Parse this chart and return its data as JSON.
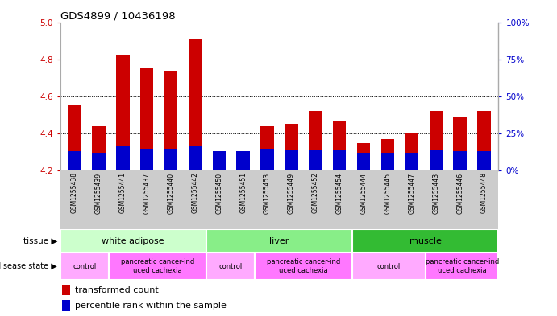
{
  "title": "GDS4899 / 10436198",
  "samples": [
    "GSM1255438",
    "GSM1255439",
    "GSM1255441",
    "GSM1255437",
    "GSM1255440",
    "GSM1255442",
    "GSM1255450",
    "GSM1255451",
    "GSM1255453",
    "GSM1255449",
    "GSM1255452",
    "GSM1255454",
    "GSM1255444",
    "GSM1255445",
    "GSM1255447",
    "GSM1255443",
    "GSM1255446",
    "GSM1255448"
  ],
  "transformed_count": [
    4.55,
    4.44,
    4.82,
    4.75,
    4.74,
    4.91,
    4.3,
    4.29,
    4.44,
    4.45,
    4.52,
    4.47,
    4.35,
    4.37,
    4.4,
    4.52,
    4.49,
    4.52
  ],
  "percentile_pct": [
    13,
    12,
    17,
    15,
    15,
    17,
    13,
    13,
    15,
    14,
    14,
    14,
    12,
    12,
    12,
    14,
    13,
    13
  ],
  "ylim_left": [
    4.2,
    5.0
  ],
  "ylim_right": [
    0,
    100
  ],
  "yticks_left": [
    4.2,
    4.4,
    4.6,
    4.8,
    5.0
  ],
  "yticks_right": [
    0,
    25,
    50,
    75,
    100
  ],
  "bar_color_red": "#cc0000",
  "bar_color_blue": "#0000cc",
  "base": 4.2,
  "dotted_lines": [
    4.4,
    4.6,
    4.8
  ],
  "tissue_groups": [
    {
      "label": "white adipose",
      "start": 0,
      "end": 6,
      "color": "#ccffcc"
    },
    {
      "label": "liver",
      "start": 6,
      "end": 12,
      "color": "#88ee88"
    },
    {
      "label": "muscle",
      "start": 12,
      "end": 18,
      "color": "#33bb33"
    }
  ],
  "disease_groups": [
    {
      "label": "control",
      "start": 0,
      "end": 2,
      "color": "#ffaaff"
    },
    {
      "label": "pancreatic cancer-ind\nuced cachexia",
      "start": 2,
      "end": 6,
      "color": "#ff77ff"
    },
    {
      "label": "control",
      "start": 6,
      "end": 8,
      "color": "#ffaaff"
    },
    {
      "label": "pancreatic cancer-ind\nuced cachexia",
      "start": 8,
      "end": 12,
      "color": "#ff77ff"
    },
    {
      "label": "control",
      "start": 12,
      "end": 15,
      "color": "#ffaaff"
    },
    {
      "label": "pancreatic cancer-ind\nuced cachexia",
      "start": 15,
      "end": 18,
      "color": "#ff77ff"
    }
  ],
  "bg_color": "#ffffff",
  "xlabels_bg": "#cccccc",
  "bar_width": 0.55,
  "n_samples": 18
}
